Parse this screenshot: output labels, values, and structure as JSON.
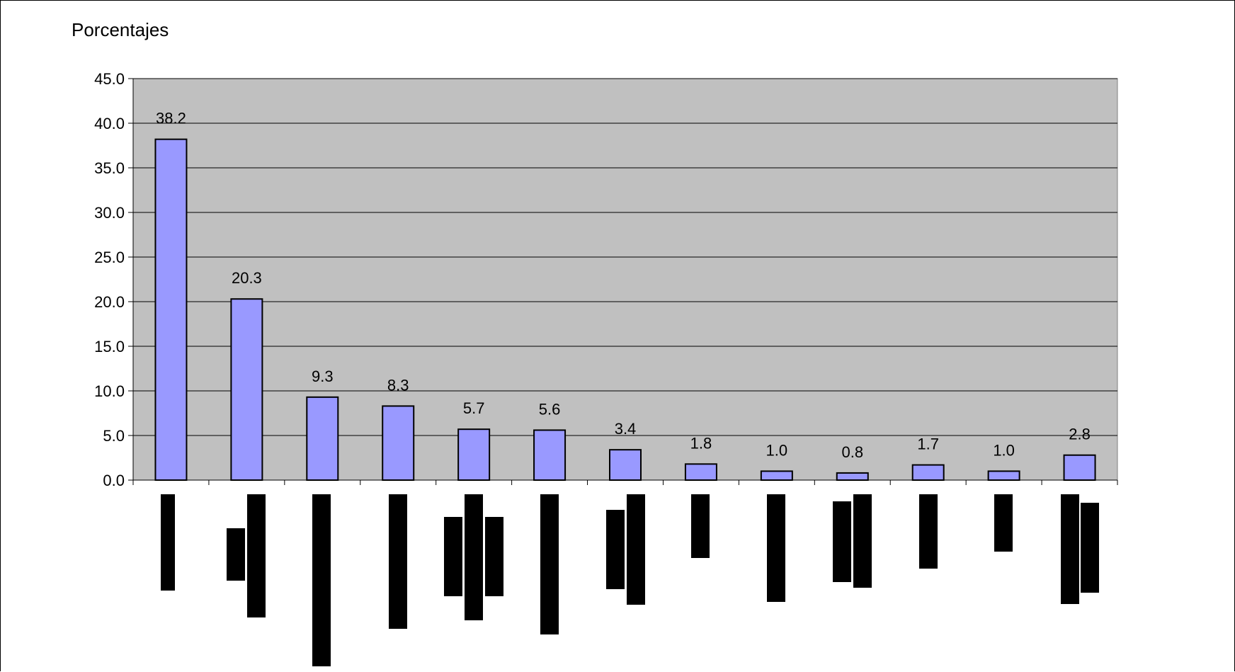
{
  "chart_data": {
    "type": "bar",
    "ylabel": "Porcentajes",
    "ylim": [
      0,
      45
    ],
    "yticks": [
      0,
      5,
      10,
      15,
      20,
      25,
      30,
      35,
      40,
      45
    ],
    "ytick_labels": [
      "0.0",
      "5.0",
      "10.0",
      "15.0",
      "20.0",
      "25.0",
      "30.0",
      "35.0",
      "40.0",
      "45.0"
    ],
    "grid": true,
    "legend": "none",
    "colors": {
      "bar_fill": "#9999ff",
      "bar_stroke": "#000000",
      "plot_background": "#c0c0c0",
      "gridline": "#000000",
      "redaction": "#000000"
    },
    "series": [
      {
        "values": [
          38.2,
          20.3,
          9.3,
          8.3,
          5.7,
          5.6,
          3.4,
          1.8,
          1.0,
          0.8,
          1.7,
          1.0,
          2.8
        ],
        "data_labels": [
          "38.2",
          "20.3",
          "9.3",
          "8.3",
          "5.7",
          "5.6",
          "3.4",
          "1.8",
          "1.0",
          "0.8",
          "1.7",
          "1.0",
          "2.8"
        ]
      }
    ],
    "category_count": 13,
    "category_labels_redacted": true
  }
}
